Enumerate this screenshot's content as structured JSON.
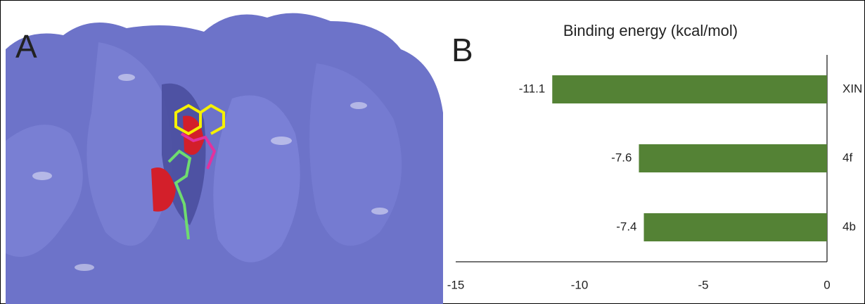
{
  "panel_labels": [
    "A",
    "B"
  ],
  "chart_data": {
    "type": "bar",
    "orientation": "horizontal",
    "title": "Binding energy (kcal/mol)",
    "categories": [
      "XIN",
      "4f",
      "4b"
    ],
    "values": [
      -11.1,
      -7.6,
      -7.4
    ],
    "color": "#548235",
    "xlim": [
      -15,
      0
    ],
    "xticks": [
      -15,
      -10,
      -5,
      0
    ],
    "grid": false
  }
}
